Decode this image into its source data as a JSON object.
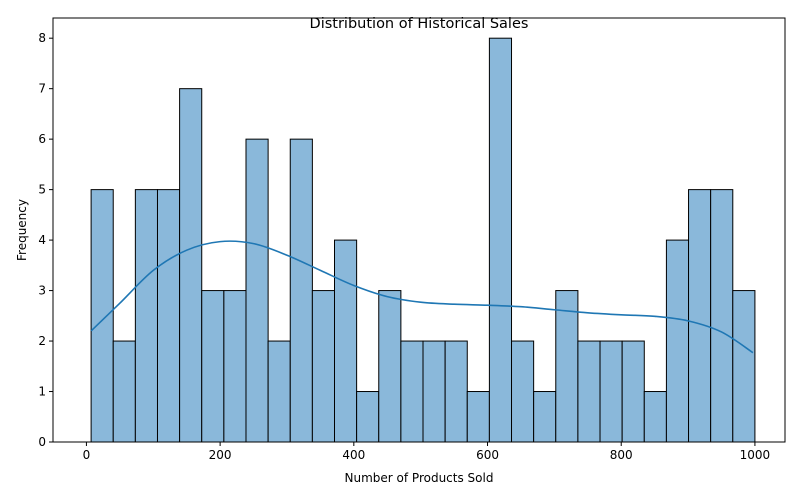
{
  "chart_data": {
    "type": "bar",
    "title": "Distribution of Historical Sales",
    "xlabel": "Number of Products Sold",
    "ylabel": "Frequency",
    "xlim": [
      -50,
      1045
    ],
    "ylim": [
      0,
      8.4
    ],
    "x_ticks": [
      0,
      200,
      400,
      600,
      800,
      1000
    ],
    "y_ticks": [
      0,
      1,
      2,
      3,
      4,
      5,
      6,
      7,
      8
    ],
    "bin_start": 7,
    "bin_width": 33.1,
    "counts": [
      5,
      2,
      5,
      5,
      7,
      3,
      3,
      6,
      2,
      6,
      3,
      4,
      1,
      3,
      2,
      2,
      2,
      1,
      8,
      2,
      1,
      3,
      2,
      2,
      2,
      1,
      4,
      5,
      5,
      3
    ],
    "kde": {
      "x": [
        7,
        50,
        100,
        150,
        200,
        250,
        300,
        350,
        400,
        450,
        500,
        550,
        600,
        650,
        700,
        750,
        800,
        850,
        900,
        950,
        997
      ],
      "y": [
        2.2,
        2.75,
        3.4,
        3.8,
        3.97,
        3.93,
        3.7,
        3.4,
        3.1,
        2.88,
        2.77,
        2.73,
        2.71,
        2.68,
        2.62,
        2.56,
        2.52,
        2.49,
        2.4,
        2.18,
        1.77
      ]
    },
    "colors": {
      "bar": "#8ab8da",
      "kde": "#1f77b4"
    },
    "grid": false,
    "legend": "none"
  }
}
